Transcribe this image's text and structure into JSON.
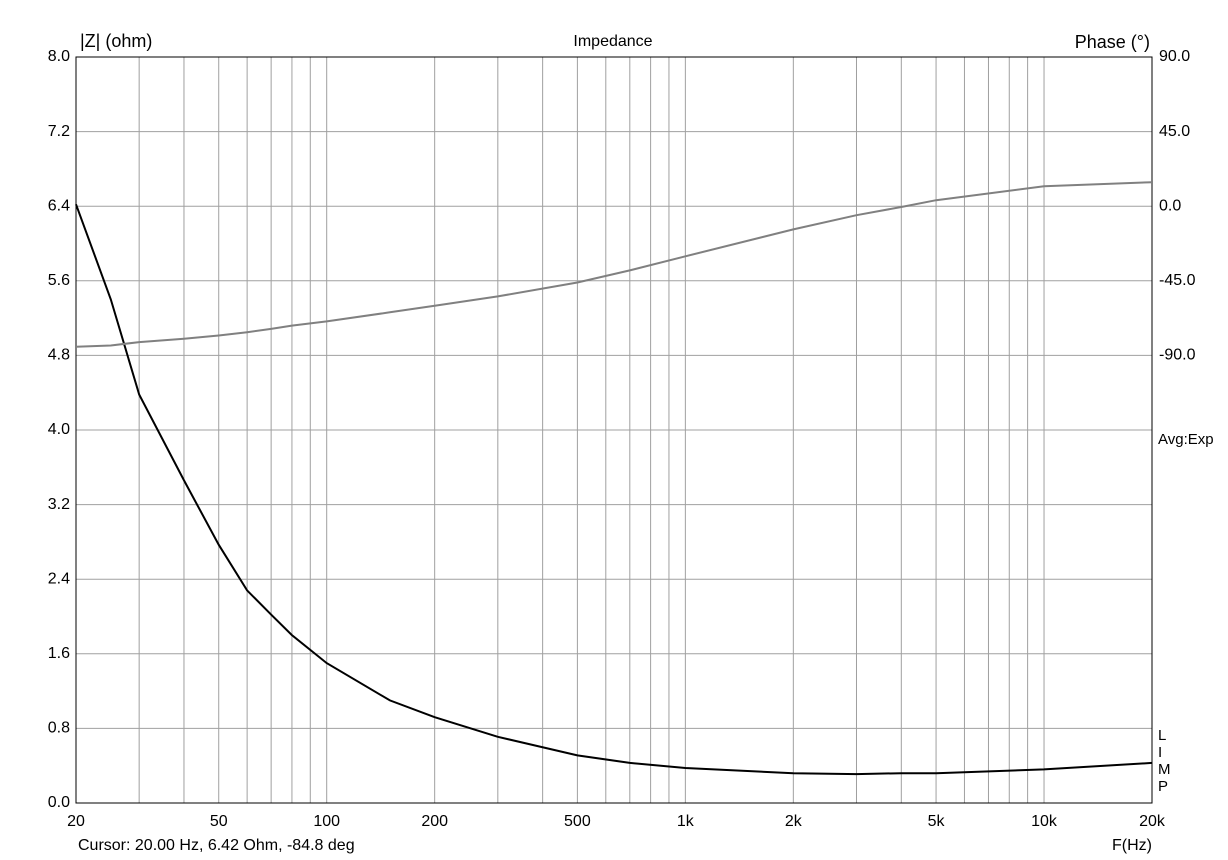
{
  "chart_data": {
    "type": "line",
    "title": "Impedance",
    "y_label": "|Z| (ohm)",
    "y2_label": "Phase (°)",
    "x_label": "F(Hz)",
    "annotation": "Avg:Exp",
    "side_letters": [
      "L",
      "I",
      "M",
      "P"
    ],
    "cursor": "Cursor: 20.00 Hz, 6.42 Ohm, -84.8 deg",
    "log_x": true,
    "grid": true,
    "x": [
      20,
      25,
      30,
      40,
      50,
      60,
      70,
      80,
      100,
      150,
      200,
      300,
      500,
      700,
      1000,
      2000,
      3000,
      4000,
      5000,
      10000,
      20000
    ],
    "series": [
      {
        "name": "|Z|",
        "color": "#000000",
        "values": [
          6.42,
          5.4,
          4.38,
          3.46,
          2.77,
          2.28,
          2.02,
          1.8,
          1.5,
          1.1,
          0.92,
          0.71,
          0.51,
          0.43,
          0.375,
          0.32,
          0.31,
          0.32,
          0.32,
          0.36,
          0.43
        ]
      },
      {
        "name": "Phase",
        "color": "#808080",
        "axis": "y2",
        "values": [
          -84.8,
          -84,
          -82,
          -80,
          -78,
          -76,
          -74,
          -72,
          -69.5,
          -64,
          -60,
          -54.4,
          -46,
          -38.7,
          -30.2,
          -14,
          -5.4,
          -0.5,
          3.6,
          12,
          14.5
        ]
      }
    ],
    "xlim": [
      20,
      20000
    ],
    "xticks": [
      20,
      50,
      100,
      200,
      500,
      {
        "value": 1000,
        "label": "1k"
      },
      {
        "value": 2000,
        "label": "2k"
      },
      {
        "value": 5000,
        "label": "5k"
      },
      {
        "value": 10000,
        "label": "10k"
      },
      {
        "value": 20000,
        "label": "20k"
      }
    ],
    "xgrid_minor": [
      30,
      40,
      60,
      70,
      80,
      90,
      300,
      400,
      600,
      700,
      800,
      900,
      3000,
      4000,
      6000,
      7000,
      8000,
      9000
    ],
    "ylim": [
      0,
      8
    ],
    "yticks": [
      {
        "value": 0,
        "label": "0.0"
      },
      0.8,
      1.6,
      2.4,
      3.2,
      {
        "value": 4,
        "label": "4.0"
      },
      4.8,
      5.6,
      6.4,
      7.2,
      {
        "value": 8,
        "label": "8.0"
      }
    ],
    "y2lim": [
      -360,
      90
    ],
    "y2ticks": [
      {
        "value": 90,
        "label": "90.0"
      },
      {
        "value": 45,
        "label": "45.0"
      },
      {
        "value": 0,
        "label": "0.0"
      },
      {
        "value": -45,
        "label": "-45.0"
      },
      {
        "value": -90,
        "label": "-90.0"
      }
    ]
  }
}
